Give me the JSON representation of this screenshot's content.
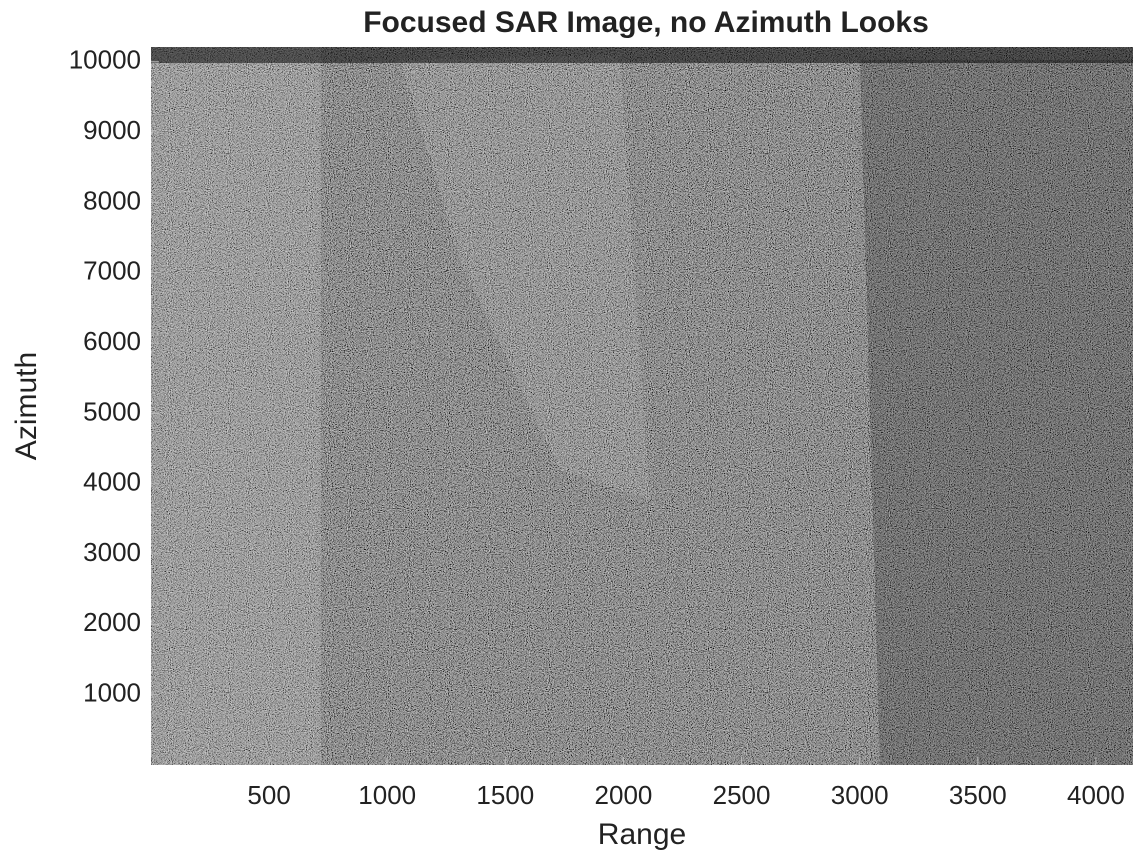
{
  "chart_data": {
    "type": "image",
    "title": "Focused SAR Image, no Azimuth Looks",
    "xlabel": "Range",
    "ylabel": "Azimuth",
    "xlim": [
      0,
      4157
    ],
    "ylim": [
      0,
      10210
    ],
    "xticks": [
      500,
      1000,
      1500,
      2000,
      2500,
      3000,
      3500,
      4000
    ],
    "yticks": [
      1000,
      2000,
      3000,
      4000,
      5000,
      6000,
      7000,
      8000,
      9000,
      10000
    ]
  }
}
